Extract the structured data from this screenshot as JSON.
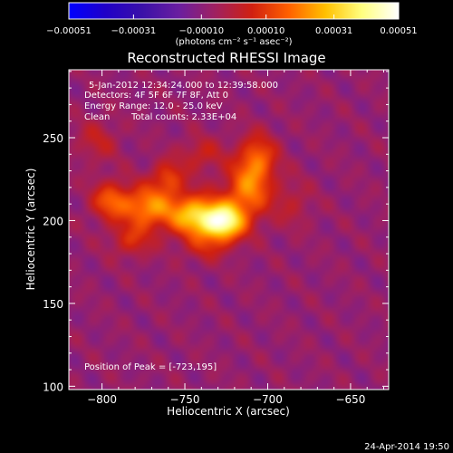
{
  "chart_data": {
    "type": "heatmap",
    "title": "Reconstructed RHESSI Image",
    "xlabel": "Heliocentric X (arcsec)",
    "ylabel": "Heliocentric Y (arcsec)",
    "xlim": [
      -820,
      -627
    ],
    "ylim": [
      98,
      291
    ],
    "x_ticks": [
      -800,
      -750,
      -700,
      -650
    ],
    "y_ticks": [
      100,
      150,
      200,
      250
    ],
    "x_tick_labels": [
      "−800",
      "−750",
      "−700",
      "−650"
    ],
    "y_tick_labels": [
      "100",
      "150",
      "200",
      "250"
    ],
    "grid": false,
    "colorbar": {
      "range": [
        -0.00051,
        0.00051
      ],
      "ticks": [
        -0.00051,
        -0.00031,
        -0.0001,
        0.0001,
        0.00031,
        0.00051
      ],
      "tick_labels": [
        "−0.00051",
        "−0.00031",
        "−0.00010",
        "0.00010",
        "0.00031",
        "0.00051"
      ],
      "units_label": "(photons cm⁻² s⁻¹ asec⁻²)",
      "colormap": [
        "#0000ff",
        "#2000c8",
        "#3a10a8",
        "#6a1ea0",
        "#a02060",
        "#d02010",
        "#ff6000",
        "#ffc000",
        "#ffff80",
        "#ffffff"
      ],
      "position": "top"
    },
    "annotations": {
      "time_range": "5-Jan-2012 12:34:24.000 to 12:39:58.000",
      "detectors": "Detectors: 4F 5F 6F 7F 8F, Att 0",
      "energy_range": "Energy Range: 12.0 - 25.0 keV",
      "algorithm": "Clean",
      "total_counts": "Total counts: 2.33E+04",
      "peak": "Position of Peak = [-723,195]"
    },
    "peak_position": [
      -723,
      195
    ],
    "sources": [
      {
        "x": -727,
        "y": 199,
        "sx": 9,
        "sy": 8,
        "amp": 0.0005
      },
      {
        "x": -745,
        "y": 203,
        "sx": 10,
        "sy": 9,
        "amp": 0.00036
      },
      {
        "x": -772,
        "y": 208,
        "sx": 11,
        "sy": 9,
        "amp": 0.0003
      },
      {
        "x": -795,
        "y": 212,
        "sx": 8,
        "sy": 8,
        "amp": 0.00022
      },
      {
        "x": -712,
        "y": 218,
        "sx": 10,
        "sy": 12,
        "amp": 0.00026
      },
      {
        "x": -706,
        "y": 238,
        "sx": 8,
        "sy": 10,
        "amp": 0.00022
      },
      {
        "x": -760,
        "y": 226,
        "sx": 7,
        "sy": 7,
        "amp": 0.00018
      },
      {
        "x": -782,
        "y": 188,
        "sx": 9,
        "sy": 7,
        "amp": 0.00014
      },
      {
        "x": -740,
        "y": 240,
        "sx": 9,
        "sy": 7,
        "amp": 0.00012
      },
      {
        "x": -803,
        "y": 248,
        "sx": 9,
        "sy": 9,
        "amp": 0.0001
      },
      {
        "x": -685,
        "y": 210,
        "sx": 8,
        "sy": 10,
        "amp": 8e-05
      },
      {
        "x": -738,
        "y": 183,
        "sx": 9,
        "sy": 6,
        "amp": 0.0001
      }
    ],
    "background": -8e-05
  },
  "footer_date": "24-Apr-2014 19:50"
}
